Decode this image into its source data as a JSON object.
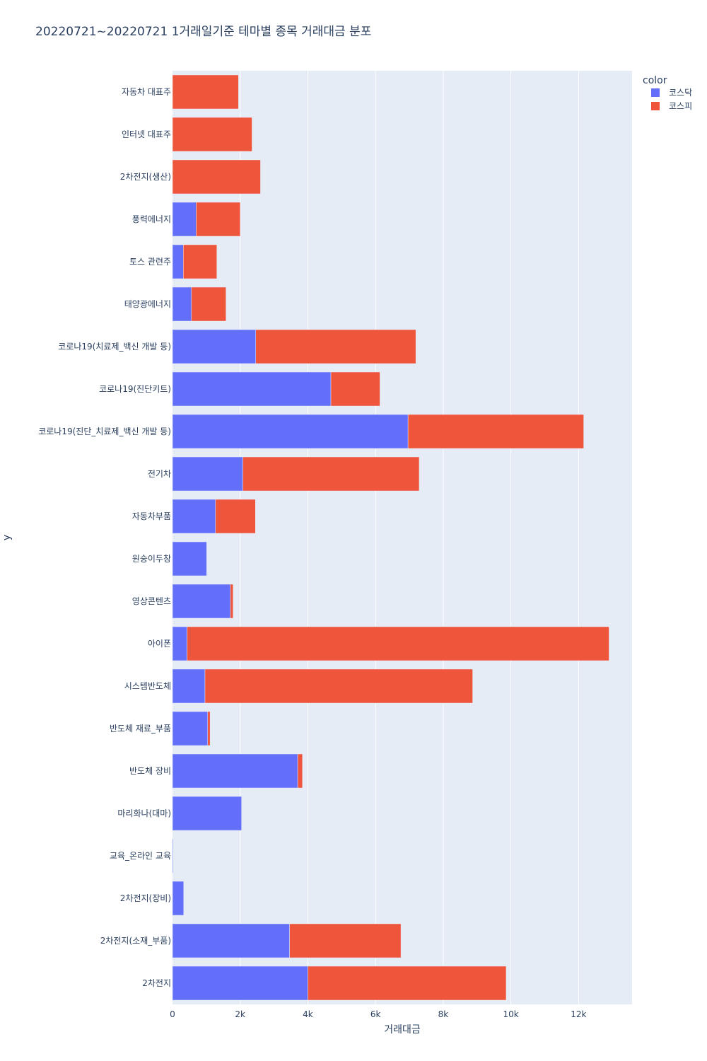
{
  "chart_data": {
    "type": "bar",
    "orientation": "horizontal",
    "barmode": "stack",
    "title": "20220721~20220721 1거래일기준 테마별 종목 거래대금 분포",
    "xlabel": "거래대금",
    "ylabel": "y",
    "xlim": [
      0,
      13580
    ],
    "xticks": [
      0,
      2000,
      4000,
      6000,
      8000,
      10000,
      12000
    ],
    "xtick_labels": [
      "0",
      "2k",
      "4k",
      "6k",
      "8k",
      "10k",
      "12k"
    ],
    "grid": true,
    "legend": {
      "title": "color",
      "placement": "top-right"
    },
    "categories": [
      "자동차 대표주",
      "인터넷 대표주",
      "2차전지(생산)",
      "풍력에너지",
      "토스 관련주",
      "태양광에너지",
      "코로나19(치료제_백신 개발 등)",
      "코로나19(진단키트)",
      "코로나19(진단_치료제_백신 개발 등)",
      "전기차",
      "자동차부품",
      "원숭이두창",
      "영상콘텐츠",
      "아이폰",
      "시스템반도체",
      "반도체 재료_부품",
      "반도체 장비",
      "마리화나(대마)",
      "교육_온라인 교육",
      "2차전지(장비)",
      "2차전지(소재_부품)",
      "2차전지"
    ],
    "series": [
      {
        "name": "코스닥",
        "color": "#636efa",
        "values": [
          0,
          0,
          0,
          700,
          320,
          560,
          2460,
          4680,
          6960,
          2080,
          1270,
          1010,
          1710,
          430,
          960,
          1040,
          3700,
          2040,
          20,
          330,
          3460,
          4000
        ]
      },
      {
        "name": "코스피",
        "color": "#ef553b",
        "values": [
          1950,
          2350,
          2600,
          1300,
          990,
          1020,
          4730,
          1450,
          5190,
          5210,
          1180,
          0,
          80,
          12470,
          7910,
          70,
          140,
          0,
          0,
          0,
          3290,
          5860
        ]
      }
    ]
  }
}
